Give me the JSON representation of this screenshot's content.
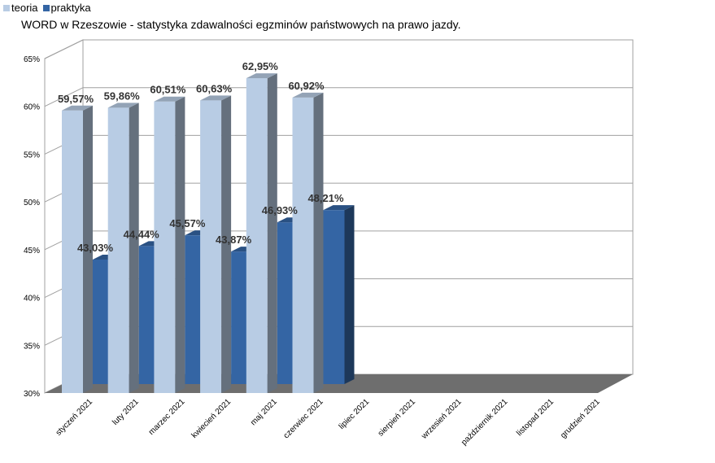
{
  "chart_data": {
    "type": "bar",
    "title": "WORD w Rzeszowie - statystyka zdawalności egzminów państwowych na prawo jazdy.",
    "categories": [
      "styczeń 2021",
      "luty 2021",
      "marzec 2021",
      "kwiecień 2021",
      "maj 2021",
      "czerwiec 2021",
      "lipiec 2021",
      "sierpień 2021",
      "wrzesień 2021",
      "październik 2021",
      "listopad 2021",
      "grudzień 2021"
    ],
    "series": [
      {
        "name": "teoria",
        "color": "#b8cce4",
        "values": [
          59.57,
          59.86,
          60.51,
          60.63,
          62.95,
          60.92,
          null,
          null,
          null,
          null,
          null,
          null
        ],
        "labels": [
          "59,57%",
          "59,86%",
          "60,51%",
          "60,63%",
          "62,95%",
          "60,92%",
          "",
          "",
          "",
          "",
          "",
          ""
        ]
      },
      {
        "name": "praktyka",
        "color": "#3465a4",
        "values": [
          43.03,
          44.44,
          45.57,
          43.87,
          46.93,
          48.21,
          null,
          null,
          null,
          null,
          null,
          null
        ],
        "labels": [
          "43,03%",
          "44,44%",
          "45,57%",
          "43,87%",
          "46,93%",
          "48,21%",
          "",
          "",
          "",
          "",
          "",
          ""
        ]
      }
    ],
    "ylim": [
      30,
      65
    ],
    "yticks": [
      "30%",
      "35%",
      "40%",
      "45%",
      "50%",
      "55%",
      "60%",
      "65%"
    ],
    "grid": true,
    "legend": "top-left",
    "style": "3d"
  }
}
